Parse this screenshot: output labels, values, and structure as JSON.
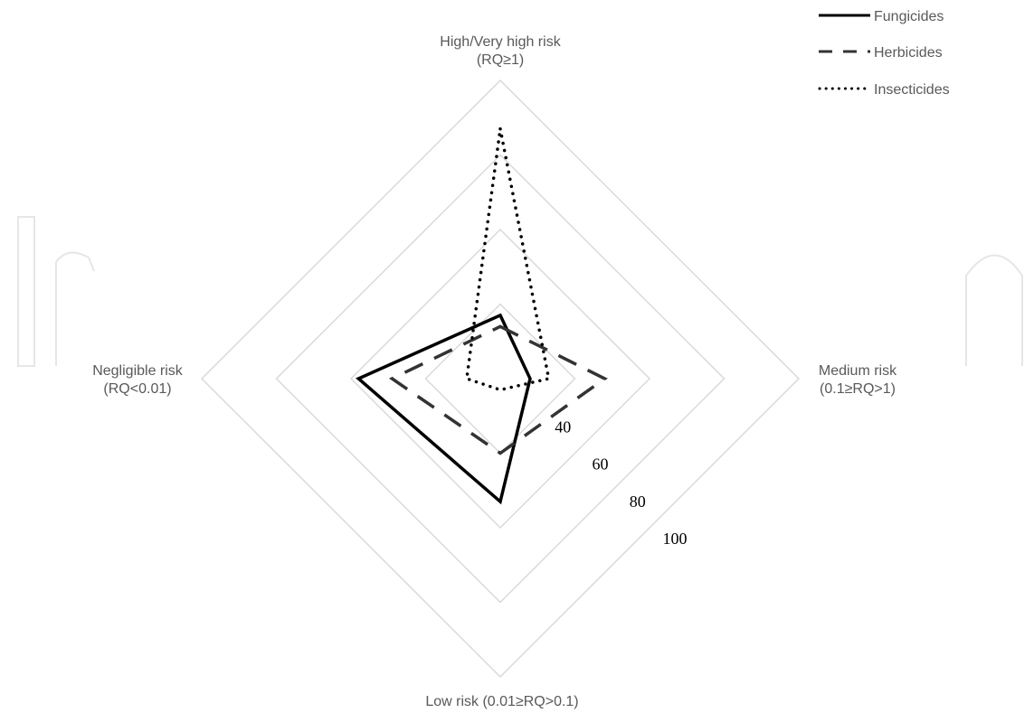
{
  "chart_data": {
    "type": "radar",
    "axes": [
      {
        "label_line1": "High/Very high risk",
        "label_line2": "(RQ≥1)"
      },
      {
        "label_line1": "Medium risk",
        "label_line2": "(0.1≥RQ>1)"
      },
      {
        "label_line1": "Low risk (0.01≥RQ>0.1)",
        "label_line2": ""
      },
      {
        "label_line1": "Negligible risk",
        "label_line2": "(RQ<0.01)"
      }
    ],
    "radial_ticks": [
      40,
      60,
      80,
      100
    ],
    "rmin": 20,
    "rmax": 100,
    "series": [
      {
        "name": "Fungicides",
        "style": "solid",
        "color": "#000000",
        "values": [
          37,
          28,
          53,
          58
        ]
      },
      {
        "name": "Herbicides",
        "style": "dashed",
        "color": "#333333",
        "values": [
          34,
          48,
          40,
          49
        ]
      },
      {
        "name": "Insecticides",
        "style": "dotted",
        "color": "#000000",
        "values": [
          87,
          33,
          23,
          29
        ]
      }
    ],
    "legend_position": "top-right",
    "grid": true
  }
}
